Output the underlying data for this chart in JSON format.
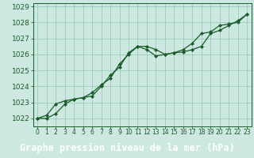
{
  "title": "Graphe pression niveau de la mer (hPa)",
  "plot_bg_color": "#cce8e0",
  "fig_bg_color": "#cce8e0",
  "label_bar_color": "#2d6e3e",
  "label_text_color": "#ffffff",
  "grid_color": "#99ccbb",
  "line_color": "#1a5c2a",
  "marker_color": "#1a5c2a",
  "ylim": [
    1021.5,
    1029.2
  ],
  "yticks": [
    1022,
    1023,
    1024,
    1025,
    1026,
    1027,
    1028,
    1029
  ],
  "xlim": [
    -0.5,
    23.5
  ],
  "xticks": [
    0,
    1,
    2,
    3,
    4,
    5,
    6,
    7,
    8,
    9,
    10,
    11,
    12,
    13,
    14,
    15,
    16,
    17,
    18,
    19,
    20,
    21,
    22,
    23
  ],
  "xlabel_fontsize": 8.5,
  "ytick_fontsize": 6.5,
  "xtick_fontsize": 5.5,
  "series1": {
    "x": [
      0,
      1,
      2,
      3,
      4,
      5,
      6,
      7,
      8,
      9,
      10,
      11,
      12,
      13,
      14,
      15,
      16,
      17,
      18,
      19,
      20,
      21,
      22,
      23
    ],
    "y": [
      1022.0,
      1022.0,
      1022.3,
      1022.9,
      1023.2,
      1023.3,
      1023.4,
      1024.0,
      1024.7,
      1025.2,
      1026.1,
      1026.5,
      1026.5,
      1026.3,
      1026.0,
      1026.1,
      1026.15,
      1026.3,
      1026.5,
      1027.3,
      1027.5,
      1027.8,
      1028.1,
      1028.5
    ]
  },
  "series2": {
    "x": [
      0,
      1,
      2,
      3,
      4,
      5,
      6,
      7,
      8,
      9,
      10,
      11,
      12,
      13,
      14,
      15,
      16,
      17,
      18,
      19,
      20,
      21,
      22,
      23
    ],
    "y": [
      1022.0,
      1022.2,
      1022.9,
      1023.1,
      1023.2,
      1023.3,
      1023.6,
      1024.1,
      1024.5,
      1025.4,
      1026.0,
      1026.5,
      1026.3,
      1025.9,
      1026.0,
      1026.1,
      1026.3,
      1026.7,
      1027.3,
      1027.4,
      1027.8,
      1027.9,
      1028.0,
      1028.5
    ]
  }
}
